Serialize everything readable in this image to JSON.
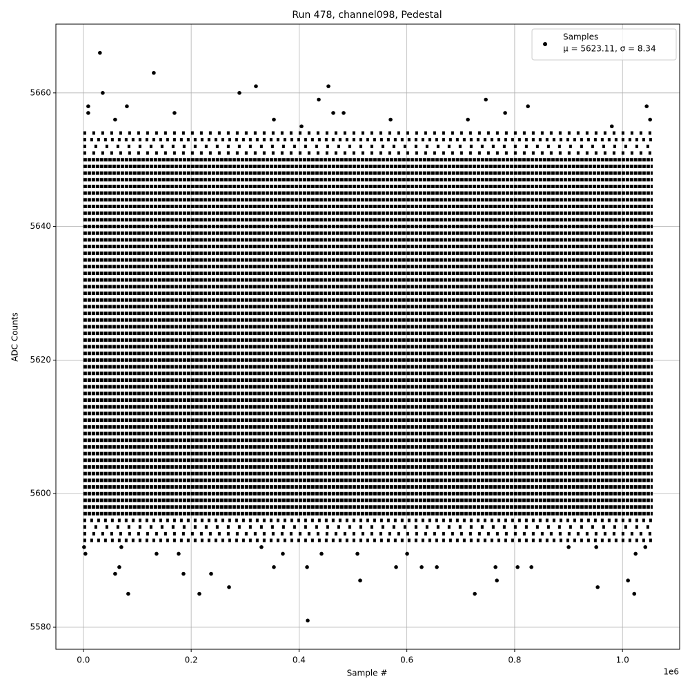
{
  "chart_data": {
    "type": "scatter",
    "title": "Run 478, channel098, Pedestal",
    "x_label": "Sample #",
    "y_label": "ADC Counts",
    "x_offset_label": "1e6",
    "xlim": [
      -51000,
      1106000
    ],
    "ylim": [
      5576.7,
      5670.3
    ],
    "xticks": [
      {
        "value": 0,
        "label": "0.0"
      },
      {
        "value": 200000,
        "label": "0.2"
      },
      {
        "value": 400000,
        "label": "0.4"
      },
      {
        "value": 600000,
        "label": "0.6"
      },
      {
        "value": 800000,
        "label": "0.8"
      },
      {
        "value": 1000000,
        "label": "1.0"
      }
    ],
    "yticks": [
      5580,
      5600,
      5620,
      5640,
      5660
    ],
    "grid": true,
    "legend": "upper right",
    "series": [
      {
        "name": "Samples",
        "stats_label": "μ = 5623.11, σ = 8.34",
        "color": "#000000",
        "x": [
          30700,
          130600,
          35900,
          320100,
          289400,
          454500,
          436600,
          746500,
          416100,
          215100,
          83200,
          726000,
          1021800,
          270200,
          953900,
          58900,
          185700,
          236900,
          513400,
          767000,
          1010200,
          66600,
          353400,
          414900,
          580000,
          627400,
          655600,
          764400,
          805400,
          831000,
          9000,
          80700,
          824600,
          1044800,
          9000,
          169000,
          463500,
          482700,
          782300,
          58900,
          1051200,
          353400,
          569800,
          713200,
          404600,
          980200,
          1300,
          70400,
          330300,
          1042300,
          951300,
          3800,
          135700,
          176700,
          370000,
          441700,
          508300,
          600500,
          1024300,
          900100
        ],
        "values": [
          5666,
          5663,
          5660,
          5661,
          5660,
          5661,
          5659,
          5659,
          5581,
          5585,
          5585,
          5585,
          5585,
          5586,
          5586,
          5588,
          5588,
          5588,
          5587,
          5587,
          5587,
          5589,
          5589,
          5589,
          5589,
          5589,
          5589,
          5589,
          5589,
          5589,
          5658,
          5658,
          5658,
          5658,
          5657,
          5657,
          5657,
          5657,
          5657,
          5656,
          5656,
          5656,
          5656,
          5656,
          5655,
          5655,
          5592,
          5592,
          5592,
          5592,
          5592,
          5591,
          5591,
          5591,
          5591,
          5591,
          5591,
          5591,
          5591,
          5592
        ]
      }
    ],
    "row_x": [
      0,
      1056000
    ],
    "rows": [
      5597,
      5598,
      5599,
      5600,
      5601,
      5602,
      5603,
      5604,
      5605,
      5606,
      5607,
      5608,
      5609,
      5610,
      5611,
      5612,
      5613,
      5614,
      5615,
      5616,
      5617,
      5618,
      5619,
      5620,
      5621,
      5622,
      5623,
      5624,
      5625,
      5626,
      5627,
      5628,
      5629,
      5630,
      5631,
      5632,
      5633,
      5634,
      5635,
      5636,
      5637,
      5638,
      5639,
      5640,
      5641,
      5642,
      5643,
      5644,
      5645,
      5646,
      5647,
      5648,
      5649,
      5650
    ],
    "sparse_rows": [
      5593,
      5594,
      5595,
      5596,
      5651,
      5652,
      5653,
      5654
    ]
  }
}
